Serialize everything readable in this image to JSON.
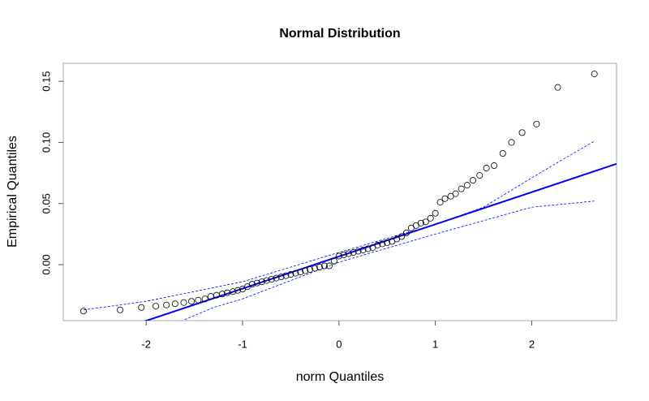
{
  "chart_data": {
    "type": "qqplot",
    "title": "Normal Distribution",
    "x_label": "norm Quantiles",
    "y_label": "Empirical Quantiles",
    "xlim": [
      -2.86,
      2.88
    ],
    "ylim": [
      -0.0458,
      0.1647
    ],
    "xticks": [
      -2,
      -1,
      0,
      1,
      2
    ],
    "yticks": [
      {
        "value": 0,
        "label": "0.00"
      },
      {
        "value": 0.05,
        "label": "0.05"
      },
      {
        "value": 0.1,
        "label": "0.10"
      },
      {
        "value": 0.15,
        "label": "0.15"
      }
    ],
    "points": {
      "color": "#000000",
      "x": [
        -2.65,
        -2.27,
        -2.05,
        -1.9,
        -1.79,
        -1.7,
        -1.61,
        -1.53,
        -1.46,
        -1.39,
        -1.33,
        -1.27,
        -1.21,
        -1.16,
        -1.1,
        -1.05,
        -1.0,
        -0.95,
        -0.9,
        -0.85,
        -0.8,
        -0.75,
        -0.7,
        -0.65,
        -0.6,
        -0.55,
        -0.5,
        -0.45,
        -0.4,
        -0.35,
        -0.3,
        -0.25,
        -0.2,
        -0.15,
        -0.1,
        -0.05,
        0,
        0.05,
        0.1,
        0.15,
        0.2,
        0.25,
        0.3,
        0.35,
        0.4,
        0.45,
        0.5,
        0.55,
        0.6,
        0.65,
        0.7,
        0.75,
        0.8,
        0.85,
        0.9,
        0.95,
        1.0,
        1.05,
        1.1,
        1.16,
        1.21,
        1.27,
        1.33,
        1.39,
        1.46,
        1.53,
        1.61,
        1.7,
        1.79,
        1.9,
        2.05,
        2.27,
        2.65
      ],
      "y": [
        -0.038,
        -0.037,
        -0.035,
        -0.034,
        -0.033,
        -0.032,
        -0.031,
        -0.03,
        -0.029,
        -0.028,
        -0.026,
        -0.025,
        -0.024,
        -0.023,
        -0.022,
        -0.021,
        -0.02,
        -0.018,
        -0.016,
        -0.015,
        -0.014,
        -0.013,
        -0.012,
        -0.011,
        -0.01,
        -0.009,
        -0.008,
        -0.007,
        -0.006,
        -0.005,
        -0.004,
        -0.003,
        -0.002,
        -0.001,
        -0.001,
        0.003,
        0.007,
        0.008,
        0.009,
        0.01,
        0.011,
        0.012,
        0.013,
        0.014,
        0.016,
        0.017,
        0.018,
        0.019,
        0.021,
        0.023,
        0.026,
        0.03,
        0.032,
        0.034,
        0.035,
        0.038,
        0.042,
        0.051,
        0.054,
        0.056,
        0.058,
        0.062,
        0.065,
        0.069,
        0.073,
        0.079,
        0.081,
        0.091,
        0.1,
        0.108,
        0.115,
        0.145,
        0.156
      ]
    },
    "reference_line": {
      "intercept": 0.0067,
      "slope": 0.0263,
      "color": "#0000ff"
    },
    "envelope": {
      "color": "#0000ff",
      "upper": {
        "x": [
          -2.65,
          -2,
          -1,
          0,
          1,
          1.5,
          2,
          2.3,
          2.65
        ],
        "y": [
          -0.037,
          -0.03,
          -0.014,
          0.01,
          0.033,
          0.047,
          0.071,
          0.085,
          0.101
        ]
      },
      "lower": {
        "x": [
          -1.6,
          -1.3,
          -1,
          0,
          1,
          1.5,
          2,
          2.65
        ],
        "y": [
          -0.045,
          -0.035,
          -0.028,
          0.002,
          0.025,
          0.036,
          0.047,
          0.052
        ]
      }
    }
  }
}
